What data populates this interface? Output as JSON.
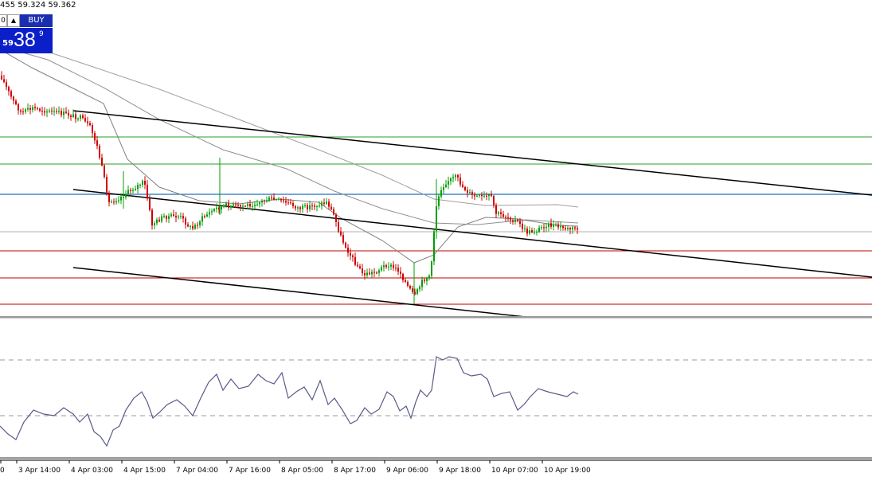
{
  "header": {
    "ohlc_text": "455 59.324 59.362"
  },
  "trade_panel": {
    "dropdown_glyph": "0",
    "arrow_glyph": "▲",
    "buy_label": "BUY",
    "price_prefix": "59",
    "price_main": "38",
    "price_superscript": "9"
  },
  "time_axis": {
    "labels": [
      "0",
      "3 Apr 14:00",
      "4 Apr 03:00",
      "4 Apr 15:00",
      "7 Apr 04:00",
      "7 Apr 16:00",
      "8 Apr 05:00",
      "8 Apr 17:00",
      "9 Apr 06:00",
      "9 Apr 18:00",
      "10 Apr 07:00",
      "10 Apr 19:00"
    ]
  },
  "colors": {
    "background": "#ffffff",
    "bull_candle": "#00a000",
    "bear_candle": "#d00000",
    "trendline": "#000000",
    "support_level": "#c00000",
    "resistance_level": "#2a9d2a",
    "pivot_level": "#1f6fbf",
    "moving_average": "#808080",
    "oscillator": "#5a5a8a",
    "buy_button": "#0a1fc8"
  }
}
